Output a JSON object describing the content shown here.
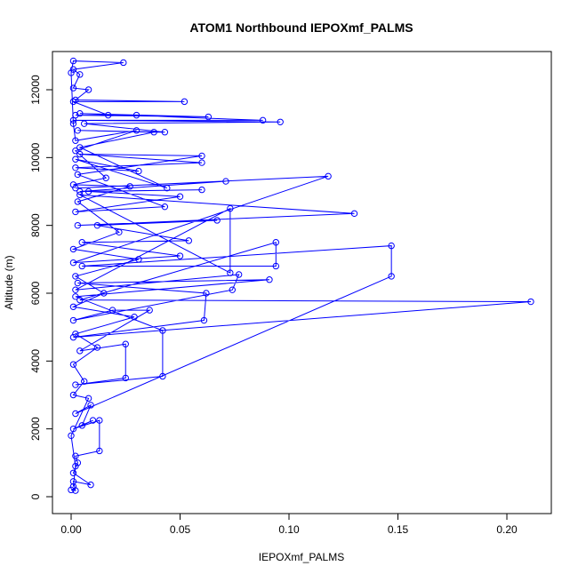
{
  "chart_data": {
    "type": "line",
    "marker": "circle",
    "title": "ATOM1 Northbound IEPOXmf_PALMS",
    "xlabel": "IEPOXmf_PALMS",
    "ylabel": "Altitude (m)",
    "color": "#0000ff",
    "x": [
      0,
      0.002,
      0.001,
      0.009,
      0.001,
      0.003,
      0.002,
      0.013,
      0.013,
      0.001,
      0.01,
      0.005,
      0.009,
      0.002,
      0.147,
      0.147,
      0.005,
      0.094,
      0.094,
      0.004,
      0.211,
      0.001,
      0.061,
      0.062,
      0.003,
      0.091,
      0.002,
      0.042,
      0.042,
      0.002,
      0.025,
      0.025,
      0.004,
      0.036,
      0.019,
      0.001,
      0.074,
      0.077,
      0.002,
      0.073,
      0.073,
      0.004,
      0.13,
      0.003,
      0.067,
      0.012,
      0.054,
      0.005,
      0.05,
      0.001,
      0.118,
      0.002,
      0.071,
      0.004,
      0.06,
      0.008,
      0.05,
      0.002,
      0.043,
      0.003,
      0.06,
      0.004,
      0.06,
      0.002,
      0.031,
      0.002,
      0.044,
      0.004,
      0.038,
      0.003,
      0.043,
      0.006,
      0.096,
      0.001,
      0.088,
      0.004,
      0.063,
      0.002,
      0.03,
      0.017,
      0.001,
      0.052,
      0.002,
      0.008,
      0.001,
      0.004,
      0.001,
      0.024,
      0.001,
      0,
      0.001,
      0.002,
      0.03,
      0.002,
      0.016,
      0.001,
      0.027,
      0.003,
      0.022,
      0.001,
      0.031,
      0.002,
      0.015,
      0.001,
      0.029,
      0.002,
      0.012,
      0.001,
      0.006,
      0.001,
      0.008,
      0,
      0.002,
      0.001
    ],
    "values": [
      200,
      180,
      450,
      350,
      700,
      1000,
      1200,
      1350,
      2250,
      2000,
      2250,
      2100,
      2700,
      2450,
      6500,
      7400,
      6800,
      6800,
      7500,
      5800,
      5750,
      4700,
      5200,
      6000,
      6300,
      6400,
      5900,
      4900,
      3550,
      3300,
      3500,
      4500,
      4300,
      5500,
      5500,
      5200,
      6100,
      6550,
      6100,
      8500,
      6600,
      8900,
      8350,
      8000,
      8150,
      8000,
      7550,
      7500,
      7100,
      6900,
      9450,
      9100,
      9300,
      9000,
      9050,
      9000,
      8850,
      8400,
      8550,
      9500,
      10050,
      10100,
      9850,
      9700,
      9600,
      9950,
      9100,
      10300,
      10750,
      10800,
      10750,
      11000,
      11050,
      11100,
      11100,
      11300,
      11200,
      11250,
      11250,
      11250,
      11650,
      11650,
      11700,
      12000,
      12050,
      12450,
      12600,
      12800,
      12850,
      12500,
      11000,
      10500,
      10800,
      10200,
      9400,
      9200,
      9150,
      8700,
      7800,
      7300,
      7000,
      6500,
      6000,
      5600,
      5300,
      4800,
      4400,
      3900,
      3400,
      3000,
      2900,
      1800,
      900,
      300
    ],
    "xlim": [
      -0.00857,
      0.2204
    ],
    "ylim": [
      -498,
      13127
    ],
    "xticks": [
      {
        "value": 0,
        "label": "0.00"
      },
      {
        "value": 0.05,
        "label": "0.05"
      },
      {
        "value": 0.1,
        "label": "0.10"
      },
      {
        "value": 0.15,
        "label": "0.15"
      },
      {
        "value": 0.2,
        "label": "0.20"
      }
    ],
    "yticks": [
      0,
      2000,
      4000,
      6000,
      8000,
      10000,
      12000
    ]
  }
}
